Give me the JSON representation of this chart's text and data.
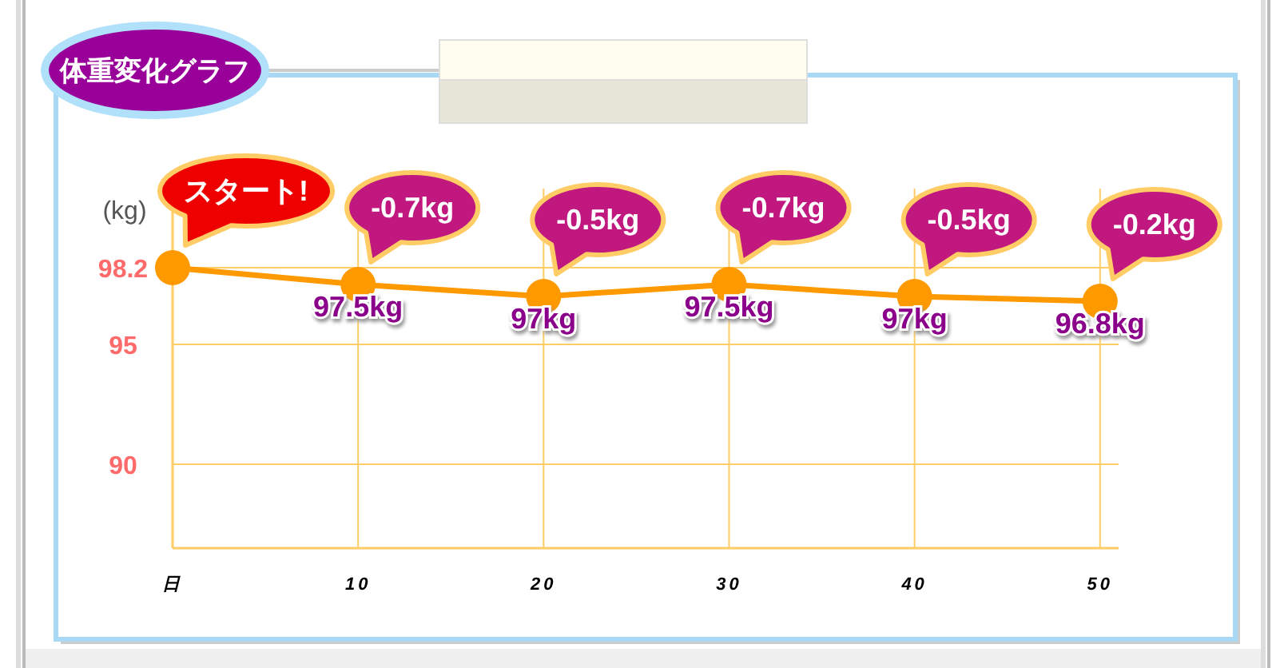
{
  "chart_data": {
    "type": "line",
    "title": "体重変化グラフ",
    "ylabel": "(kg)",
    "x": [
      0,
      10,
      20,
      30,
      40,
      50
    ],
    "xlim": [
      0,
      51
    ],
    "xticks": [
      {
        "value": 0,
        "label": "日"
      },
      10,
      20,
      30,
      40,
      50
    ],
    "ylim": [
      86.5,
      101.5
    ],
    "yticks": [
      90,
      95,
      98.2
    ],
    "series": [
      {
        "color": "#ff9900",
        "values": [
          98.2,
          97.5,
          97,
          97.5,
          97,
          96.8
        ],
        "value_labels": [
          null,
          "97.5kg",
          "97kg",
          "97.5kg",
          "97kg",
          "96.8kg"
        ]
      }
    ],
    "annotations": [
      {
        "text": "スタート!",
        "x": 0,
        "y": 98.2
      },
      {
        "text": "-0.7kg",
        "x": 10,
        "y": 97.5
      },
      {
        "text": "-0.5kg",
        "x": 20,
        "y": 97
      },
      {
        "text": "-0.7kg",
        "x": 30,
        "y": 97.5
      },
      {
        "text": "-0.5kg",
        "x": 40,
        "y": 97
      },
      {
        "text": "-0.2kg",
        "x": 50,
        "y": 96.8
      }
    ],
    "grid": true,
    "marker": "circle",
    "line_style": "solid"
  }
}
